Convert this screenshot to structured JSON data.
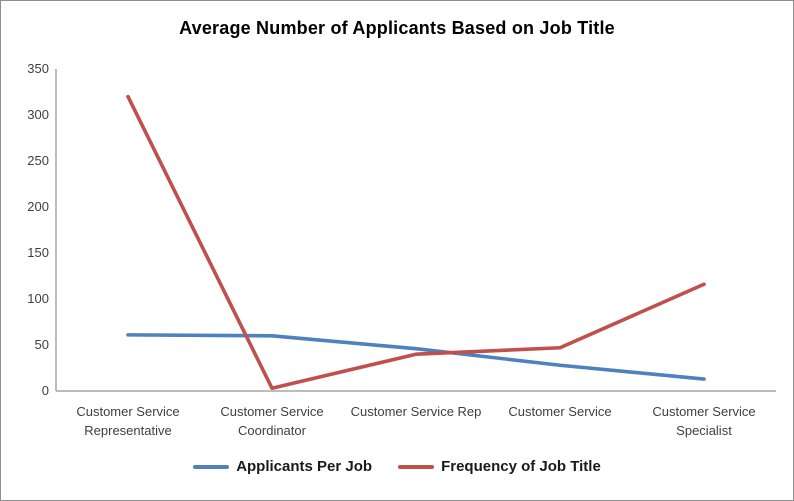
{
  "title": "Average Number of Applicants Based on Job Title",
  "chart_data": {
    "type": "line",
    "title": "Average Number of Applicants Based on Job Title",
    "categories": [
      "Customer Service Representative",
      "Customer Service Coordinator",
      "Customer Service Rep",
      "Customer Service",
      "Customer Service Specialist"
    ],
    "series": [
      {
        "name": "Applicants Per Job",
        "color": "#4F81BD",
        "values": [
          61,
          60,
          46,
          28,
          13
        ]
      },
      {
        "name": "Frequency of Job Title",
        "color": "#C0504D",
        "values": [
          320,
          3,
          40,
          47,
          116
        ]
      }
    ],
    "xlabel": "",
    "ylabel": "",
    "ylim": [
      0,
      350
    ],
    "yticks": [
      0,
      50,
      100,
      150,
      200,
      250,
      300,
      350
    ],
    "grid": false,
    "legend_position": "bottom",
    "axis_color": "#a6a6a6",
    "tick_label_color": "#3f3f3f",
    "background_color": "#ffffff"
  }
}
